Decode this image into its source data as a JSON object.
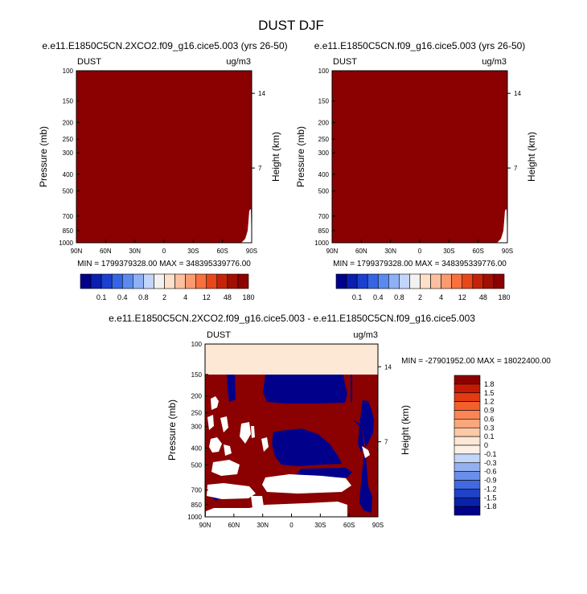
{
  "main_title": "DUST DJF",
  "colors": {
    "dark_red": "#8b0000",
    "peach": "#fde8d6",
    "navy": "#00008b",
    "white": "#ffffff"
  },
  "chart_data": [
    {
      "type": "heatmap",
      "id": "panel-2xco2",
      "title": "e.e11.E1850C5CN.2XCO2.f09_g16.cice5.003 (yrs 26-50)",
      "variable": "DUST",
      "units": "ug/m3",
      "xlabel": "",
      "ylabel": "Pressure (mb)",
      "ylabel_right": "Height (km)",
      "x_ticks": [
        "90N",
        "60N",
        "30N",
        "0",
        "30S",
        "60S",
        "90S"
      ],
      "y_ticks": [
        100,
        150,
        200,
        250,
        300,
        400,
        500,
        700,
        850,
        1000
      ],
      "y_ticks_right": [
        14,
        7
      ],
      "y_scale": "log-pressure",
      "ylim": [
        1000,
        100
      ],
      "stats": "MIN = 1799379328.00  MAX = 348395339776.00",
      "field_summary": "entire field above 180 (dark red), small missing region near 90S at surface"
    },
    {
      "type": "heatmap",
      "id": "panel-control",
      "title": "e.e11.E1850C5CN.f09_g16.cice5.003 (yrs 26-50)",
      "variable": "DUST",
      "units": "ug/m3",
      "xlabel": "",
      "ylabel": "Pressure (mb)",
      "ylabel_right": "Height (km)",
      "x_ticks": [
        "90N",
        "60N",
        "30N",
        "0",
        "30S",
        "60S",
        "90S"
      ],
      "y_ticks": [
        100,
        150,
        200,
        250,
        300,
        400,
        500,
        700,
        850,
        1000
      ],
      "y_ticks_right": [
        14,
        7
      ],
      "y_scale": "log-pressure",
      "ylim": [
        1000,
        100
      ],
      "stats": "MIN = 1799379328.00  MAX = 348395339776.00",
      "field_summary": "entire field above 180 (dark red), small missing region near 90S at surface"
    },
    {
      "type": "heatmap",
      "id": "panel-diff",
      "title": "e.e11.E1850C5CN.2XCO2.f09_g16.cice5.003 - e.e11.E1850C5CN.f09_g16.cice5.003",
      "variable": "DUST",
      "units": "ug/m3",
      "xlabel": "",
      "ylabel": "Pressure (mb)",
      "ylabel_right": "Height (km)",
      "x_ticks": [
        "90N",
        "60N",
        "30N",
        "0",
        "30S",
        "60S",
        "90S"
      ],
      "y_ticks": [
        100,
        150,
        200,
        250,
        300,
        400,
        500,
        700,
        850,
        1000
      ],
      "y_ticks_right": [
        14,
        7
      ],
      "y_scale": "log-pressure",
      "ylim": [
        1000,
        100
      ],
      "stats": "MIN = -27901952.00  MAX = 18022400.00",
      "field_summary": "100-150 mb near zero; below 150 mb mixture of strong positive (dark red), strong negative (navy) and near-zero (white) bands"
    }
  ],
  "colorbar_abs": {
    "labels": [
      "0.1",
      "0.4",
      "0.8",
      "2",
      "4",
      "12",
      "48",
      "180"
    ],
    "colors": [
      "#00008b",
      "#0a1fb0",
      "#1b40d0",
      "#3565e6",
      "#5a8af0",
      "#8fb0f5",
      "#c2d5fa",
      "#f4f2f0",
      "#fde0c8",
      "#fcbfa0",
      "#fb9a70",
      "#f7703d",
      "#e8471c",
      "#c42309",
      "#a10f02",
      "#8b0000"
    ]
  },
  "colorbar_diff": {
    "labels": [
      "1.8",
      "1.5",
      "1.2",
      "0.9",
      "0.6",
      "0.3",
      "0.1",
      "0",
      "-0.1",
      "-0.3",
      "-0.6",
      "-0.9",
      "-1.2",
      "-1.5",
      "-1.8"
    ],
    "colors": [
      "#8b0000",
      "#c41a04",
      "#e23b12",
      "#f35f2d",
      "#fa8555",
      "#fba77c",
      "#fcc8a6",
      "#fde8d6",
      "#fdf0e6",
      "#c3d5f8",
      "#94b0f1",
      "#6a8eea",
      "#4169e1",
      "#1f42c7",
      "#0a22a8",
      "#00008b"
    ]
  }
}
